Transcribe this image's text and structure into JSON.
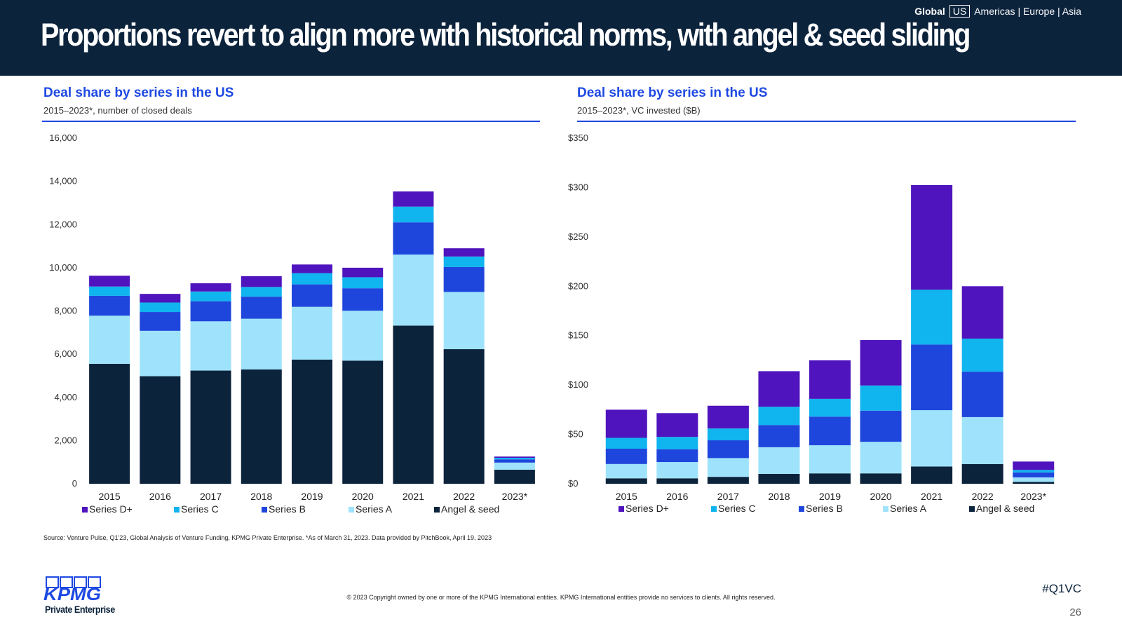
{
  "header": {
    "title": "Proportions revert to align more with historical norms, with angel & seed sliding",
    "nav": {
      "global": "Global",
      "us": "US",
      "rest": "Americas | Europe | Asia"
    }
  },
  "charts": [
    {
      "title": "Deal share by series in the US",
      "subtitle": "2015–2023*, number of closed deals"
    },
    {
      "title": "Deal share by series in the US",
      "subtitle": "2015–2023*, VC invested ($B)"
    }
  ],
  "colors": {
    "Series D+": "#4f14bd",
    "Series C": "#10b4ee",
    "Series B": "#1f46dc",
    "Series A": "#9ee3fb",
    "Angel & seed": "#0c233c"
  },
  "chart_data": [
    {
      "type": "bar",
      "stacked": true,
      "categories": [
        "2015",
        "2016",
        "2017",
        "2018",
        "2019",
        "2020",
        "2021",
        "2022",
        "2023*"
      ],
      "series": [
        {
          "name": "Angel & seed",
          "values": [
            5550,
            4980,
            5240,
            5290,
            5750,
            5700,
            7320,
            6230,
            650
          ]
        },
        {
          "name": "Series A",
          "values": [
            2230,
            2100,
            2280,
            2350,
            2440,
            2310,
            3290,
            2650,
            330
          ]
        },
        {
          "name": "Series B",
          "values": [
            920,
            870,
            930,
            1020,
            1040,
            1040,
            1490,
            1150,
            150
          ]
        },
        {
          "name": "Series C",
          "values": [
            430,
            440,
            450,
            450,
            520,
            510,
            730,
            490,
            70
          ]
        },
        {
          "name": "Series D+",
          "values": [
            500,
            400,
            380,
            500,
            400,
            440,
            700,
            380,
            60
          ]
        }
      ],
      "ylim": [
        0,
        16000
      ],
      "yticks": [
        "0",
        "2,000",
        "4,000",
        "6,000",
        "8,000",
        "10,000",
        "12,000",
        "14,000",
        "16,000"
      ],
      "legend_order": [
        "Series D+",
        "Series C",
        "Series B",
        "Series A",
        "Angel & seed"
      ],
      "legend": "bottom"
    },
    {
      "type": "bar",
      "stacked": true,
      "categories": [
        "2015",
        "2016",
        "2017",
        "2018",
        "2019",
        "2020",
        "2021",
        "2022",
        "2023*"
      ],
      "series": [
        {
          "name": "Angel & seed",
          "values": [
            5.5,
            5.5,
            7,
            10,
            10.5,
            10.5,
            17.5,
            20,
            2
          ]
        },
        {
          "name": "Series A",
          "values": [
            14.5,
            16.5,
            19,
            27,
            28.5,
            32,
            57,
            47.5,
            4.5
          ]
        },
        {
          "name": "Series B",
          "values": [
            15.5,
            13,
            18,
            22.5,
            29,
            31.5,
            66.5,
            46,
            5
          ]
        },
        {
          "name": "Series C",
          "values": [
            11,
            12.5,
            12,
            18.5,
            18,
            25.5,
            55.5,
            33.5,
            2.5
          ]
        },
        {
          "name": "Series D+",
          "values": [
            28.5,
            24,
            23,
            36,
            39,
            46,
            106,
            53,
            8.5
          ]
        }
      ],
      "ylim": [
        0,
        350
      ],
      "yticks": [
        "$0",
        "$50",
        "$100",
        "$150",
        "$200",
        "$250",
        "$300",
        "$350"
      ],
      "legend_order": [
        "Series D+",
        "Series C",
        "Series B",
        "Series A",
        "Angel & seed"
      ],
      "legend": "bottom"
    }
  ],
  "footer": {
    "source": "Source: Venture Pulse, Q1'23, Global Analysis of Venture Funding, KPMG Private Enterprise. *As of March 31, 2023. Data provided by PitchBook, April 19, 2023",
    "copyright": "© 2023 Copyright owned by one or more of the KPMG International entities. KPMG International entities provide no services to clients. All rights reserved.",
    "hashtag": "#Q1VC",
    "page": "26",
    "logo": "KPMG",
    "logo_sub": "Private Enterprise"
  }
}
